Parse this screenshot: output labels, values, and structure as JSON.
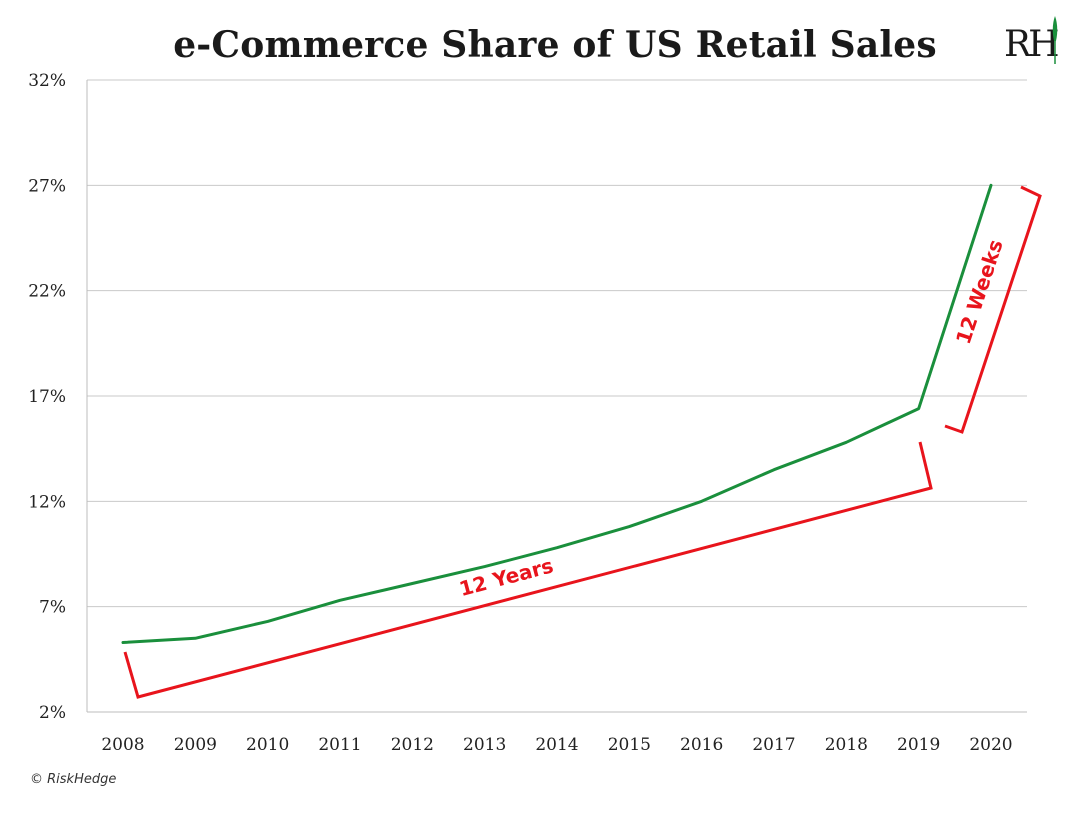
{
  "logo": {
    "text": "RH"
  },
  "credit": "© RiskHedge",
  "chart_data": {
    "type": "line",
    "title": "e-Commerce Share of US Retail Sales",
    "xlabel": "",
    "ylabel": "",
    "x": [
      2008,
      2009,
      2010,
      2011,
      2012,
      2013,
      2014,
      2015,
      2016,
      2017,
      2018,
      2019,
      2020
    ],
    "x_tick_labels": [
      "2008",
      "2009",
      "2010",
      "2011",
      "2012",
      "2013",
      "2014",
      "2015",
      "2016",
      "2017",
      "2018",
      "2019",
      "2020"
    ],
    "ylim": [
      2,
      32
    ],
    "y_ticks": [
      2,
      7,
      12,
      17,
      22,
      27,
      32
    ],
    "y_tick_labels": [
      "2%",
      "7%",
      "12%",
      "17%",
      "22%",
      "27%",
      "32%"
    ],
    "grid": true,
    "series": [
      {
        "values": [
          5.3,
          5.5,
          6.3,
          7.3,
          8.1,
          8.9,
          9.8,
          10.8,
          12.0,
          13.5,
          14.8,
          16.4,
          27.0
        ],
        "color": "#1a8f3c"
      }
    ],
    "annotations": [
      {
        "text": "12 Years",
        "color": "#e8141c",
        "spans": [
          "2008",
          "2019"
        ]
      },
      {
        "text": "12 Weeks",
        "color": "#e8141c",
        "spans": [
          "2019",
          "2020"
        ]
      }
    ]
  }
}
